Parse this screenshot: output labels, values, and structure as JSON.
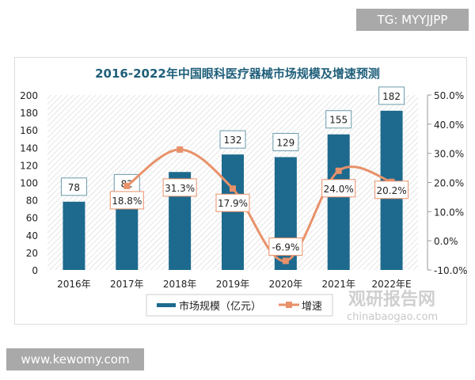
{
  "overlay": {
    "top_right": "TG: MYYJJPP",
    "bottom_left": "www.kewomy.com",
    "watermark_cn": "观研报告网",
    "watermark_en": "chinabaogao.com"
  },
  "chart_data": {
    "type": "bar+line",
    "title": "2016-2022年中国眼科医疗器械市场规模及增速预测",
    "categories": [
      "2016年",
      "2017年",
      "2018年",
      "2019年",
      "2020年",
      "2021年",
      "2022年E"
    ],
    "series": [
      {
        "name": "市场规模（亿元）",
        "type": "bar",
        "axis": "left",
        "values": [
          78,
          82,
          null,
          132,
          129,
          155,
          182
        ],
        "labels": [
          "78",
          "82",
          "",
          "132",
          "129",
          "155",
          "182"
        ],
        "color": "#1d6a8e"
      },
      {
        "name": "增速",
        "type": "line",
        "axis": "right",
        "values": [
          null,
          18.8,
          31.3,
          17.9,
          -6.9,
          24.0,
          20.2
        ],
        "labels": [
          "",
          "18.8%",
          "31.3%",
          "17.9%",
          "-6.9%",
          "24.0%",
          "20.2%"
        ],
        "color": "#e8916a"
      }
    ],
    "bar_values_estimated": {
      "2018年": 112
    },
    "left_axis": {
      "range": [
        0,
        200
      ],
      "ticks": [
        "0",
        "20",
        "40",
        "60",
        "80",
        "100",
        "120",
        "140",
        "160",
        "180",
        "200"
      ]
    },
    "right_axis": {
      "range": [
        -10,
        50
      ],
      "ticks": [
        "-10.0%",
        "0.0%",
        "10.0%",
        "20.0%",
        "30.0%",
        "40.0%",
        "50.0%"
      ]
    },
    "legend": "bottom"
  }
}
